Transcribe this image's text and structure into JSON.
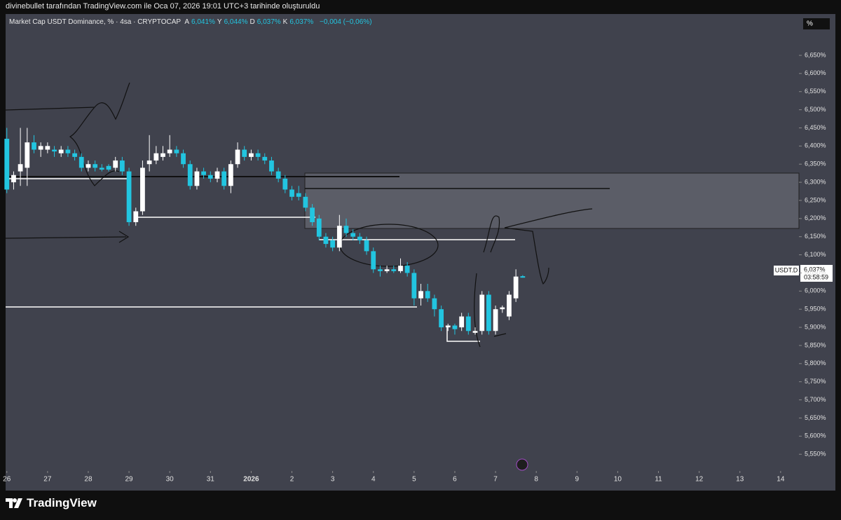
{
  "header": {
    "caption": "divinebullet tarafından TradingView.com ile Oca 07, 2026 19:01 UTC+3 tarihinde oluşturuldu",
    "symbol": "Market Cap USDT Dominance, % · 4sa · CRYPTOCAP",
    "ohlc": [
      {
        "key": "A",
        "value": "6,041%"
      },
      {
        "key": "Y",
        "value": "6,044%"
      },
      {
        "key": "D",
        "value": "6,037%"
      },
      {
        "key": "K",
        "value": "6,037%"
      }
    ],
    "change": "−0,004 (−0,06%)"
  },
  "price_tag": {
    "ticker": "USDT.D",
    "price": "6,037%",
    "countdown": "03:58:59"
  },
  "unit_box": "%",
  "brand": "TradingView",
  "chart_data": {
    "type": "candlestick",
    "up_color": "#ffffff",
    "down_color": "#22c5e0",
    "x": [
      0,
      0.167,
      0.333,
      0.5,
      0.667,
      0.833,
      1,
      1.167,
      1.333,
      1.5,
      1.667,
      1.833,
      2,
      2.167,
      2.333,
      2.5,
      2.667,
      2.833,
      3,
      3.167,
      3.333,
      3.5,
      3.667,
      3.833,
      4,
      4.167,
      4.333,
      4.5,
      4.667,
      4.833,
      5,
      5.167,
      5.333,
      5.5,
      5.667,
      5.833,
      6,
      6.167,
      6.333,
      6.5,
      6.667,
      6.833,
      7,
      7.167,
      7.333,
      7.5,
      7.667,
      7.833,
      8,
      8.167,
      8.333,
      8.5,
      8.667,
      8.833,
      9,
      9.167,
      9.333,
      9.5,
      9.667,
      9.833,
      10,
      10.167,
      10.333,
      10.5,
      10.667,
      10.833,
      11,
      11.167,
      11.333,
      11.5,
      11.667,
      11.833,
      12,
      12.167,
      12.333,
      12.5,
      12.667
    ],
    "open": [
      6.42,
      6.3,
      6.33,
      6.34,
      6.41,
      6.39,
      6.39,
      6.39,
      6.38,
      6.39,
      6.38,
      6.37,
      6.34,
      6.35,
      6.34,
      6.345,
      6.34,
      6.36,
      6.33,
      6.19,
      6.22,
      6.35,
      6.36,
      6.37,
      6.38,
      6.39,
      6.38,
      6.35,
      6.29,
      6.33,
      6.32,
      6.31,
      6.33,
      6.29,
      6.35,
      6.39,
      6.37,
      6.38,
      6.37,
      6.36,
      6.33,
      6.31,
      6.28,
      6.27,
      6.26,
      6.23,
      6.2,
      6.15,
      6.14,
      6.12,
      6.18,
      6.16,
      6.15,
      6.14,
      6.11,
      6.06,
      6.055,
      6.06,
      6.055,
      6.07,
      6.05,
      5.98,
      6.0,
      5.98,
      5.95,
      5.9,
      5.905,
      5.9,
      5.93,
      5.885,
      5.89,
      5.99,
      5.89,
      5.95,
      5.93,
      5.98,
      6.041
    ],
    "high": [
      6.45,
      6.33,
      6.45,
      6.45,
      6.43,
      6.41,
      6.41,
      6.4,
      6.4,
      6.4,
      6.39,
      6.38,
      6.36,
      6.36,
      6.35,
      6.35,
      6.37,
      6.37,
      6.34,
      6.23,
      6.36,
      6.43,
      6.4,
      6.4,
      6.43,
      6.4,
      6.39,
      6.36,
      6.34,
      6.34,
      6.33,
      6.34,
      6.34,
      6.36,
      6.41,
      6.4,
      6.39,
      6.39,
      6.38,
      6.37,
      6.34,
      6.32,
      6.29,
      6.29,
      6.27,
      6.24,
      6.21,
      6.16,
      6.15,
      6.21,
      6.2,
      6.17,
      6.16,
      6.15,
      6.12,
      6.07,
      6.07,
      6.07,
      6.09,
      6.08,
      6.06,
      6.02,
      6.02,
      5.99,
      5.96,
      5.91,
      5.91,
      5.94,
      5.94,
      5.9,
      6.0,
      6.0,
      5.96,
      5.96,
      6.0,
      6.06,
      6.044
    ],
    "low": [
      6.27,
      6.28,
      6.29,
      6.29,
      6.38,
      6.37,
      6.38,
      6.37,
      6.37,
      6.37,
      6.36,
      6.33,
      6.33,
      6.33,
      6.33,
      6.33,
      6.33,
      6.32,
      6.18,
      6.18,
      6.21,
      6.33,
      6.35,
      6.36,
      6.37,
      6.37,
      6.34,
      6.28,
      6.28,
      6.31,
      6.3,
      6.3,
      6.28,
      6.27,
      6.34,
      6.36,
      6.36,
      6.36,
      6.35,
      6.32,
      6.3,
      6.27,
      6.25,
      6.25,
      6.22,
      6.18,
      6.14,
      6.12,
      6.11,
      6.11,
      6.15,
      6.14,
      6.13,
      6.1,
      6.05,
      6.04,
      6.05,
      6.05,
      6.05,
      6.04,
      5.96,
      5.96,
      5.97,
      5.93,
      5.89,
      5.89,
      5.88,
      5.89,
      5.88,
      5.88,
      5.88,
      5.88,
      5.88,
      5.94,
      5.92,
      5.97,
      6.037
    ],
    "close": [
      6.28,
      6.32,
      6.35,
      6.41,
      6.39,
      6.4,
      6.4,
      6.385,
      6.39,
      6.38,
      6.37,
      6.34,
      6.35,
      6.34,
      6.335,
      6.335,
      6.36,
      6.33,
      6.19,
      6.22,
      6.34,
      6.36,
      6.38,
      6.38,
      6.39,
      6.38,
      6.35,
      6.29,
      6.33,
      6.32,
      6.31,
      6.33,
      6.29,
      6.35,
      6.39,
      6.37,
      6.38,
      6.37,
      6.36,
      6.33,
      6.31,
      6.28,
      6.26,
      6.26,
      6.23,
      6.19,
      6.15,
      6.13,
      6.12,
      6.18,
      6.16,
      6.15,
      6.14,
      6.11,
      6.06,
      6.055,
      6.06,
      6.055,
      6.07,
      6.05,
      5.98,
      6.0,
      5.98,
      5.95,
      5.9,
      5.905,
      5.895,
      5.93,
      5.89,
      5.89,
      5.99,
      5.89,
      5.95,
      5.955,
      5.99,
      6.04,
      6.037
    ],
    "xlim": [
      -0.03,
      19.45
    ],
    "xticks": [
      {
        "value": 0,
        "label": "26"
      },
      {
        "value": 1,
        "label": "27"
      },
      {
        "value": 2,
        "label": "28"
      },
      {
        "value": 3,
        "label": "29"
      },
      {
        "value": 4,
        "label": "30"
      },
      {
        "value": 5,
        "label": "31"
      },
      {
        "value": 6,
        "label": "2026"
      },
      {
        "value": 7,
        "label": "2"
      },
      {
        "value": 8,
        "label": "3"
      },
      {
        "value": 9,
        "label": "4"
      },
      {
        "value": 10,
        "label": "5"
      },
      {
        "value": 11,
        "label": "6"
      },
      {
        "value": 12,
        "label": "7"
      },
      {
        "value": 13,
        "label": "8"
      },
      {
        "value": 14,
        "label": "9"
      },
      {
        "value": 15,
        "label": "10"
      },
      {
        "value": 16,
        "label": "11"
      },
      {
        "value": 17,
        "label": "12"
      },
      {
        "value": 18,
        "label": "13"
      },
      {
        "value": 19,
        "label": "14"
      }
    ],
    "ylim": [
      5.504,
      6.764
    ],
    "yticks": [
      {
        "value": 6.65,
        "label": "6,650%"
      },
      {
        "value": 6.6,
        "label": "6,600%"
      },
      {
        "value": 6.55,
        "label": "6,550%"
      },
      {
        "value": 6.5,
        "label": "6,500%"
      },
      {
        "value": 6.45,
        "label": "6,450%"
      },
      {
        "value": 6.4,
        "label": "6,400%"
      },
      {
        "value": 6.35,
        "label": "6,350%"
      },
      {
        "value": 6.3,
        "label": "6,300%"
      },
      {
        "value": 6.25,
        "label": "6,250%"
      },
      {
        "value": 6.2,
        "label": "6,200%"
      },
      {
        "value": 6.15,
        "label": "6,150%"
      },
      {
        "value": 6.1,
        "label": "6,100%"
      },
      {
        "value": 6.05,
        "label": "6,050%"
      },
      {
        "value": 6,
        "label": "6,000%"
      },
      {
        "value": 5.95,
        "label": "5,950%"
      },
      {
        "value": 5.9,
        "label": "5,900%"
      },
      {
        "value": 5.85,
        "label": "5,850%"
      },
      {
        "value": 5.8,
        "label": "5,800%"
      },
      {
        "value": 5.75,
        "label": "5,750%"
      },
      {
        "value": 5.7,
        "label": "5,700%"
      },
      {
        "value": 5.65,
        "label": "5,650%"
      },
      {
        "value": 5.6,
        "label": "5,600%"
      },
      {
        "value": 5.55,
        "label": "5,550%"
      }
    ]
  }
}
